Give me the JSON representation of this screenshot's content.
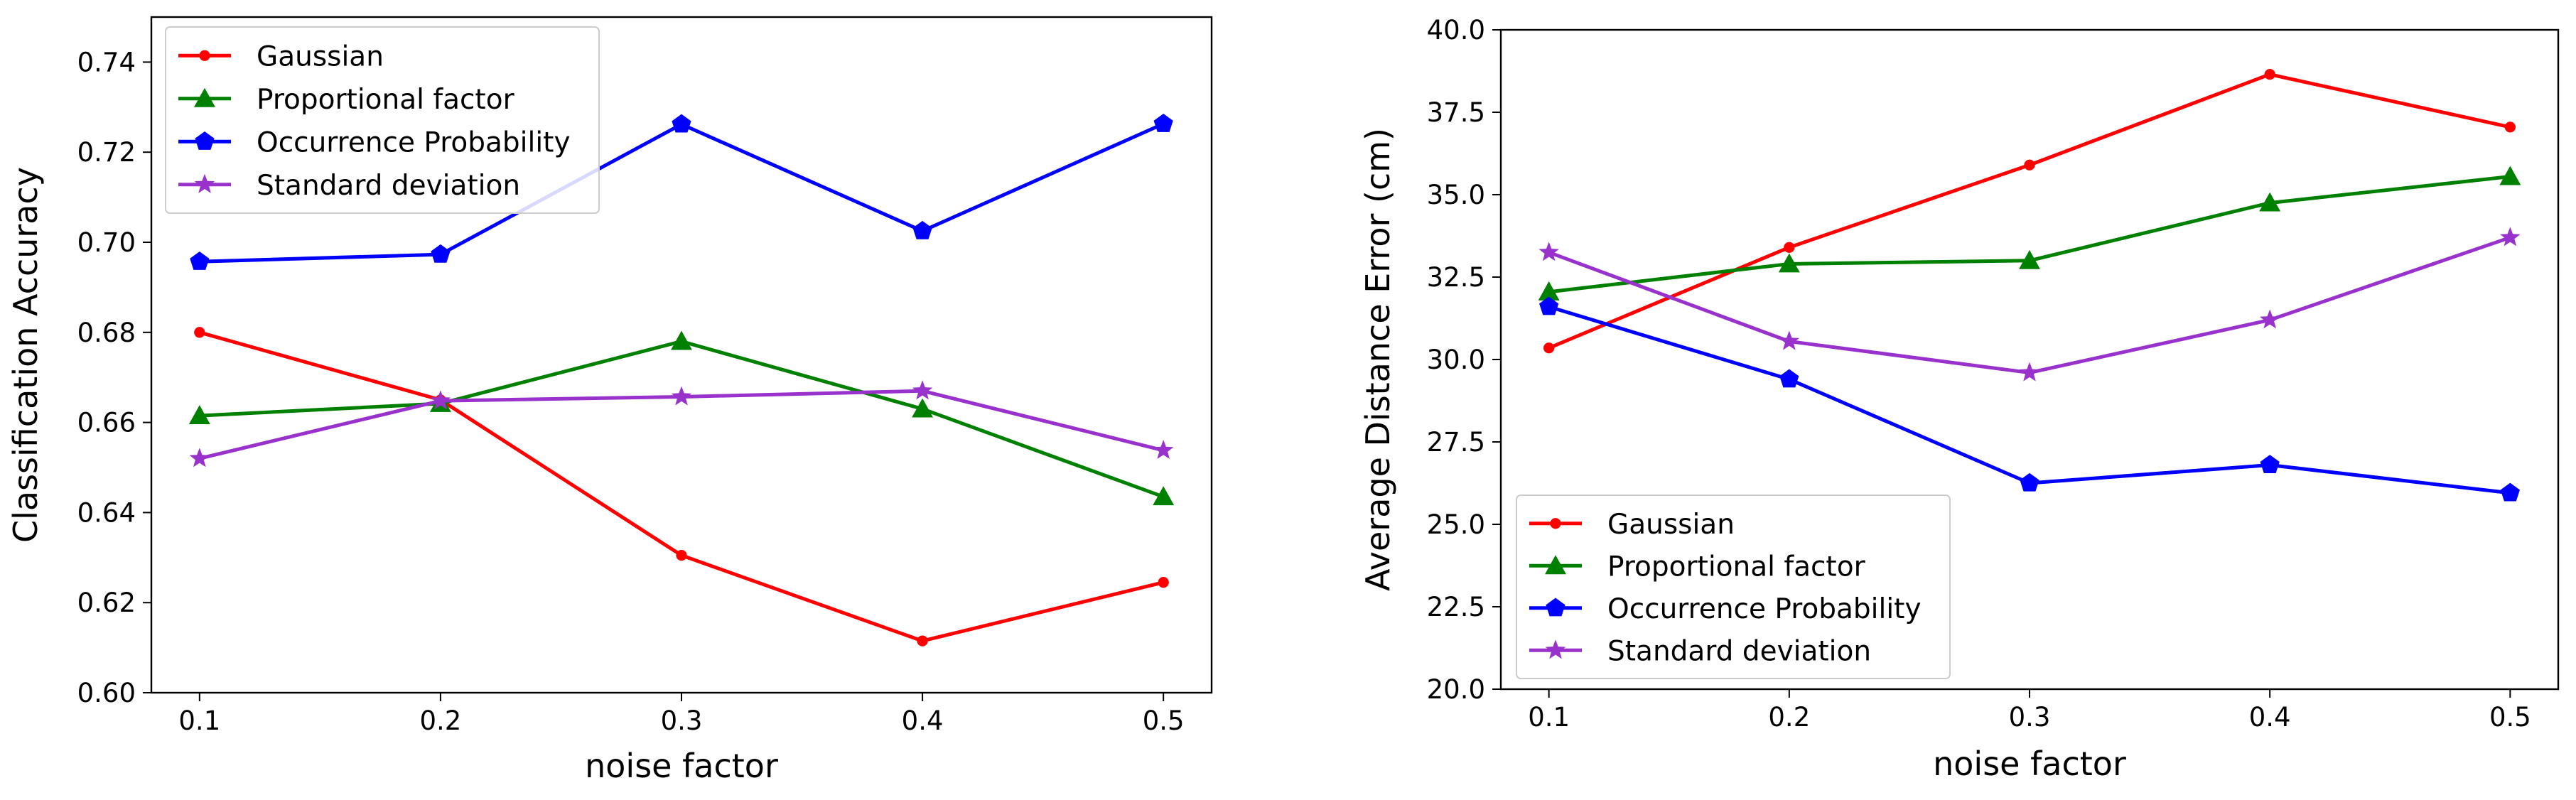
{
  "chart_data": [
    {
      "type": "line",
      "title": "",
      "xlabel": "noise factor",
      "ylabel": "Classification Accuracy",
      "x": [
        0.1,
        0.2,
        0.3,
        0.4,
        0.5
      ],
      "x_tick_labels": [
        "0.1",
        "0.2",
        "0.3",
        "0.4",
        "0.5"
      ],
      "xlim": [
        0.08,
        0.52
      ],
      "ylim": [
        0.6,
        0.75
      ],
      "y_ticks": [
        0.6,
        0.62,
        0.64,
        0.66,
        0.68,
        0.7,
        0.72,
        0.74
      ],
      "y_tick_labels": [
        "0.60",
        "0.62",
        "0.64",
        "0.66",
        "0.68",
        "0.70",
        "0.72",
        "0.74"
      ],
      "grid": false,
      "legend_position": "top-left",
      "series": [
        {
          "name": "Gaussian",
          "color": "#ff0000",
          "marker": "circle",
          "values": [
            0.68,
            0.665,
            0.6305,
            0.6115,
            0.6245
          ]
        },
        {
          "name": "Proportional factor",
          "color": "#008000",
          "marker": "triangle",
          "values": [
            0.6615,
            0.6642,
            0.678,
            0.663,
            0.6435
          ]
        },
        {
          "name": "Occurrence Probability",
          "color": "#0000ff",
          "marker": "pentagon",
          "values": [
            0.6957,
            0.6973,
            0.7262,
            0.7025,
            0.7263
          ]
        },
        {
          "name": "Standard deviation",
          "color": "#9932cc",
          "marker": "star",
          "values": [
            0.652,
            0.6648,
            0.6657,
            0.667,
            0.6538
          ]
        }
      ]
    },
    {
      "type": "line",
      "title": "",
      "xlabel": "noise factor",
      "ylabel": "Average Distance Error (cm)",
      "x": [
        0.1,
        0.2,
        0.3,
        0.4,
        0.5
      ],
      "x_tick_labels": [
        "0.1",
        "0.2",
        "0.3",
        "0.4",
        "0.5"
      ],
      "xlim": [
        0.08,
        0.52
      ],
      "ylim": [
        20.0,
        40.0
      ],
      "y_ticks": [
        20.0,
        22.5,
        25.0,
        27.5,
        30.0,
        32.5,
        35.0,
        37.5,
        40.0
      ],
      "y_tick_labels": [
        "20.0",
        "22.5",
        "25.0",
        "27.5",
        "30.0",
        "32.5",
        "35.0",
        "37.5",
        "40.0"
      ],
      "grid": false,
      "legend_position": "bottom-left",
      "series": [
        {
          "name": "Gaussian",
          "color": "#ff0000",
          "marker": "circle",
          "values": [
            30.35,
            33.4,
            35.9,
            38.65,
            37.05
          ]
        },
        {
          "name": "Proportional factor",
          "color": "#008000",
          "marker": "triangle",
          "values": [
            32.05,
            32.9,
            33.0,
            34.75,
            35.55
          ]
        },
        {
          "name": "Occurrence Probability",
          "color": "#0000ff",
          "marker": "pentagon",
          "values": [
            31.6,
            29.4,
            26.25,
            26.8,
            25.95
          ]
        },
        {
          "name": "Standard deviation",
          "color": "#9932cc",
          "marker": "star",
          "values": [
            33.25,
            30.55,
            29.6,
            31.2,
            33.7
          ]
        }
      ]
    }
  ]
}
